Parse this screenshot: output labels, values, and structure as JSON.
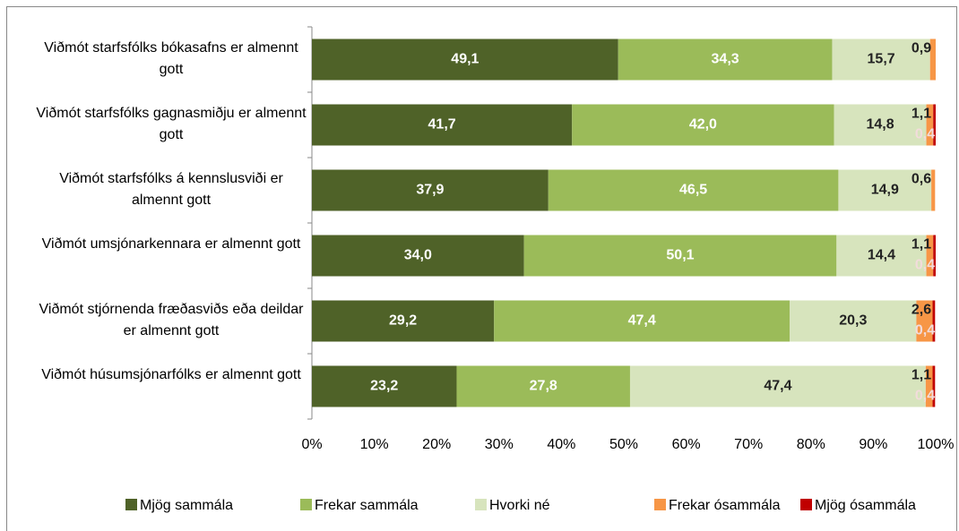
{
  "chart_data": {
    "type": "stacked_bar_horizontal",
    "categories": [
      "Viðmót starfsfólks bókasafns er almennt gott",
      "Viðmót starfsfólks gagnasmiðju er almennt gott",
      "Viðmót starfsfólks á kennslusviði er almennt gott",
      "Viðmót umsjónarkennara er almennt gott",
      "Viðmót stjórnenda fræðasviðs eða deildar er almennt gott",
      "Viðmót húsumsjónarfólks er almennt gott"
    ],
    "series": [
      {
        "name": "Mjög sammála",
        "color": "#4f6228",
        "values": [
          49.1,
          41.7,
          37.9,
          34.0,
          29.2,
          23.2
        ],
        "value_labels": [
          "49,1",
          "41,7",
          "37,9",
          "34,0",
          "29,2",
          "23,2"
        ]
      },
      {
        "name": "Frekar sammála",
        "color": "#9bbb59",
        "values": [
          34.3,
          42.0,
          46.5,
          50.1,
          47.4,
          27.8
        ],
        "value_labels": [
          "34,3",
          "42,0",
          "46,5",
          "50,1",
          "47,4",
          "27,8"
        ]
      },
      {
        "name": "Hvorki né",
        "color": "#d7e4bd",
        "values": [
          15.7,
          14.8,
          14.9,
          14.4,
          20.3,
          47.4
        ],
        "value_labels": [
          "15,7",
          "14,8",
          "14,9",
          "14,4",
          "20,3",
          "47,4"
        ]
      },
      {
        "name": "Frekar ósammála",
        "color": "#f79646",
        "values": [
          0.9,
          1.1,
          0.6,
          1.1,
          2.6,
          1.1
        ],
        "value_labels": [
          "0,9",
          "1,1",
          "0,6",
          "1,1",
          "2,6",
          "1,1"
        ]
      },
      {
        "name": "Mjög ósammála",
        "color": "#c00000",
        "values": [
          null,
          0.4,
          null,
          0.4,
          0.4,
          0.4
        ],
        "value_labels": [
          null,
          "0,4",
          null,
          "0,4",
          "0,4",
          "0,4"
        ]
      }
    ],
    "xlim": [
      0,
      100
    ],
    "xticks": [
      {
        "value": 0,
        "label": "0%"
      },
      {
        "value": 10,
        "label": "10%"
      },
      {
        "value": 20,
        "label": "20%"
      },
      {
        "value": 30,
        "label": "30%"
      },
      {
        "value": 40,
        "label": "40%"
      },
      {
        "value": 50,
        "label": "50%"
      },
      {
        "value": 60,
        "label": "60%"
      },
      {
        "value": 70,
        "label": "70%"
      },
      {
        "value": 80,
        "label": "80%"
      },
      {
        "value": 90,
        "label": "90%"
      },
      {
        "value": 100,
        "label": "100%"
      }
    ],
    "legend": "bottom"
  }
}
